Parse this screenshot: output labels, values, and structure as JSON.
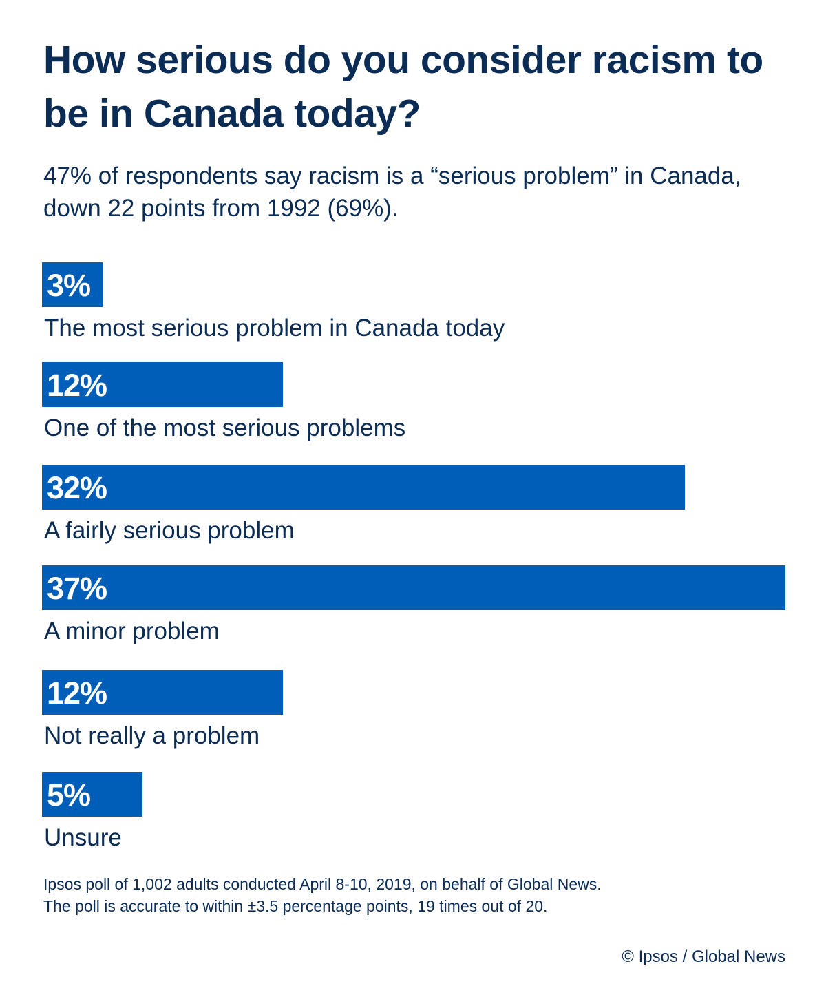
{
  "chart_data": {
    "type": "bar",
    "orientation": "horizontal",
    "title": "How serious do you consider racism to be in Canada today?",
    "subtitle": "47% of respondents say racism is a “serious problem” in Canada, down 22 points from 1992 (69%).",
    "categories": [
      "The most serious problem in Canada today",
      "One of the most serious problems",
      "A fairly serious problem",
      "A minor problem",
      "Not really a problem",
      "Unsure"
    ],
    "values": [
      3,
      12,
      32,
      37,
      12,
      5
    ],
    "value_labels": [
      "3%",
      "12%",
      "32%",
      "37%",
      "12%",
      "5%"
    ],
    "unit": "%",
    "xlim": [
      0,
      37
    ],
    "grid": false,
    "colors": {
      "bar": "#005eb8",
      "text": "#0b2c55",
      "value_label": "#ffffff"
    }
  },
  "footnote": [
    "Ipsos poll of 1,002 adults conducted April 8-10, 2019, on behalf of Global News.",
    "The poll is accurate to within ±3.5 percentage points, 19 times out of 20."
  ],
  "credit": "© Ipsos / Global News"
}
